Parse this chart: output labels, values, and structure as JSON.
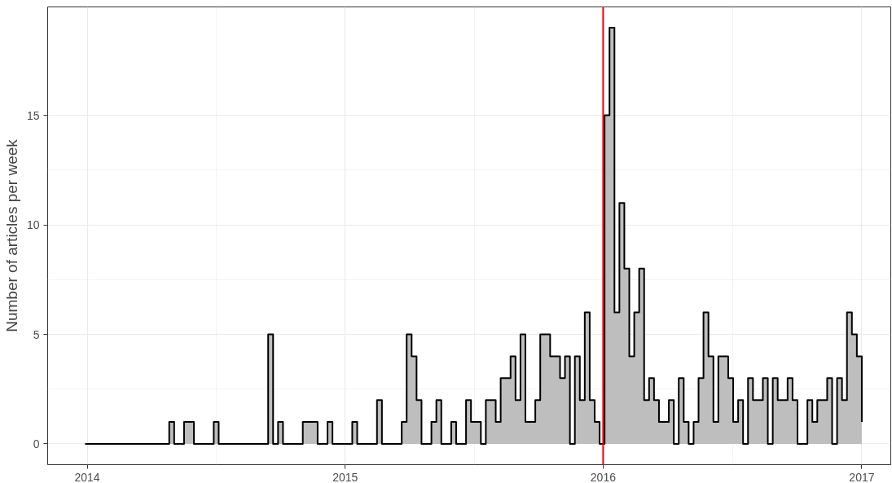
{
  "chart_data": {
    "type": "area",
    "ylabel": "Number of articles per week",
    "x": [
      "2013-12-29",
      "2014-04-27",
      "2014-05-04",
      "2014-05-18",
      "2014-06-01",
      "2014-06-29",
      "2014-07-06",
      "2014-09-14",
      "2014-09-21",
      "2014-09-28",
      "2014-10-05",
      "2014-11-02",
      "2014-11-23",
      "2014-12-07",
      "2014-12-14",
      "2015-01-11",
      "2015-01-18",
      "2015-02-15",
      "2015-02-22",
      "2015-03-22",
      "2015-03-29",
      "2015-04-05",
      "2015-04-12",
      "2015-04-19",
      "2015-05-03",
      "2015-05-10",
      "2015-05-17",
      "2015-05-31",
      "2015-06-07",
      "2015-06-21",
      "2015-06-28",
      "2015-07-12",
      "2015-07-19",
      "2015-08-02",
      "2015-08-09",
      "2015-08-23",
      "2015-08-30",
      "2015-09-06",
      "2015-09-13",
      "2015-09-27",
      "2015-10-04",
      "2015-10-18",
      "2015-11-01",
      "2015-11-08",
      "2015-11-15",
      "2015-11-22",
      "2015-11-29",
      "2015-12-06",
      "2015-12-13",
      "2015-12-20",
      "2015-12-27",
      "2016-01-03",
      "2016-01-10",
      "2016-01-17",
      "2016-01-24",
      "2016-01-31",
      "2016-02-07",
      "2016-02-14",
      "2016-02-21",
      "2016-02-28",
      "2016-03-06",
      "2016-03-13",
      "2016-03-20",
      "2016-04-03",
      "2016-04-10",
      "2016-04-17",
      "2016-04-24",
      "2016-05-01",
      "2016-05-08",
      "2016-05-15",
      "2016-05-22",
      "2016-05-29",
      "2016-06-05",
      "2016-06-12",
      "2016-06-26",
      "2016-07-03",
      "2016-07-10",
      "2016-07-17",
      "2016-07-24",
      "2016-07-31",
      "2016-08-14",
      "2016-08-21",
      "2016-08-28",
      "2016-09-04",
      "2016-09-18",
      "2016-09-25",
      "2016-10-02",
      "2016-10-16",
      "2016-10-23",
      "2016-10-30",
      "2016-11-13",
      "2016-11-20",
      "2016-11-27",
      "2016-12-04",
      "2016-12-11",
      "2016-12-18",
      "2016-12-25",
      "2017-01-01"
    ],
    "series": [
      {
        "color": "#bebebe",
        "values": [
          0,
          1,
          0,
          1,
          0,
          1,
          0,
          5,
          0,
          1,
          0,
          1,
          0,
          1,
          0,
          1,
          0,
          2,
          0,
          1,
          5,
          4,
          2,
          0,
          1,
          2,
          0,
          1,
          0,
          2,
          1,
          0,
          2,
          1,
          3,
          4,
          2,
          5,
          1,
          2,
          5,
          4,
          3,
          4,
          0,
          4,
          2,
          6,
          2,
          1,
          0,
          15,
          19,
          6,
          11,
          8,
          4,
          6,
          8,
          2,
          3,
          2,
          1,
          2,
          0,
          3,
          1,
          0,
          1,
          3,
          6,
          4,
          1,
          4,
          3,
          1,
          2,
          0,
          3,
          2,
          3,
          0,
          3,
          2,
          3,
          2,
          0,
          2,
          1,
          2,
          3,
          0,
          3,
          2,
          6,
          5,
          4,
          1
        ]
      }
    ],
    "xlim": [
      "2013-11-06",
      "2017-02-11"
    ],
    "xticks": [
      "2014",
      "2015",
      "2016",
      "2017"
    ],
    "ylim": [
      -0.95,
      19.95
    ],
    "yticks": [
      0,
      5,
      10,
      15
    ],
    "ref_lines": [
      {
        "axis": "x",
        "value": "2016-01-01",
        "color": "#ff0000"
      }
    ],
    "grid": true
  }
}
